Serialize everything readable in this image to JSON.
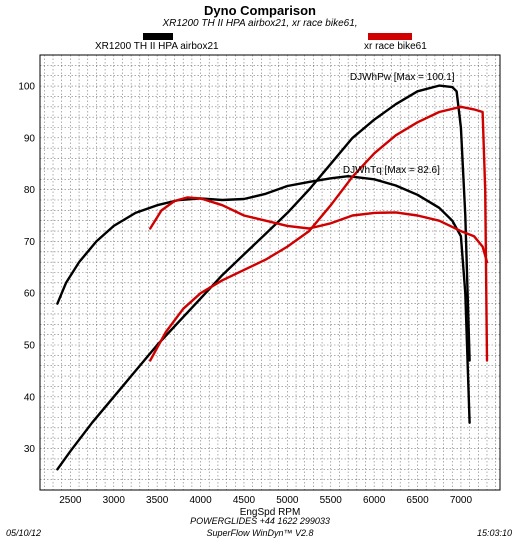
{
  "chart_data": {
    "type": "line",
    "title": "Dyno Comparison",
    "subtitle": "XR1200 TH II HPA airbox21, xr race bike61,",
    "xlabel": "EngSpd  RPM",
    "ylabel": "",
    "xlim": [
      2150,
      7450
    ],
    "ylim": [
      22,
      106
    ],
    "x_ticks": [
      2500,
      3000,
      3500,
      4000,
      4500,
      5000,
      5500,
      6000,
      6500,
      7000
    ],
    "y_ticks": [
      30,
      40,
      50,
      60,
      70,
      80,
      90,
      100
    ],
    "grid": true,
    "legend": [
      {
        "name": "XR1200 TH II HPA airbox21",
        "color": "#000000"
      },
      {
        "name": "xr race bike61",
        "color": "#d00000"
      }
    ],
    "annotations": [
      {
        "text": "DJWhPw [Max = 100.1]",
        "x": 5720,
        "y": 101.2
      },
      {
        "text": "DJWhTq [Max = 82.6]",
        "x": 5640,
        "y": 83.2
      }
    ],
    "series": [
      {
        "name": "XR1200 TH II HPA airbox21 power",
        "color": "#000000",
        "points": [
          [
            2350,
            26
          ],
          [
            2500,
            29.5
          ],
          [
            2750,
            35
          ],
          [
            3000,
            40
          ],
          [
            3250,
            45
          ],
          [
            3500,
            50
          ],
          [
            3750,
            54.5
          ],
          [
            4000,
            59
          ],
          [
            4250,
            63.5
          ],
          [
            4500,
            67.5
          ],
          [
            4750,
            71.5
          ],
          [
            5000,
            75.5
          ],
          [
            5250,
            80
          ],
          [
            5500,
            85
          ],
          [
            5750,
            90
          ],
          [
            6000,
            93.5
          ],
          [
            6250,
            96.5
          ],
          [
            6500,
            99
          ],
          [
            6750,
            100.1
          ],
          [
            6900,
            99.8
          ],
          [
            6950,
            99
          ],
          [
            7000,
            92
          ],
          [
            7050,
            75
          ],
          [
            7100,
            47
          ]
        ]
      },
      {
        "name": "XR1200 TH II HPA airbox21 torque",
        "color": "#000000",
        "points": [
          [
            2350,
            58
          ],
          [
            2450,
            62
          ],
          [
            2600,
            66
          ],
          [
            2800,
            70
          ],
          [
            3000,
            73
          ],
          [
            3250,
            75.5
          ],
          [
            3500,
            77
          ],
          [
            3750,
            78
          ],
          [
            4000,
            78.3
          ],
          [
            4250,
            78
          ],
          [
            4500,
            78.2
          ],
          [
            4750,
            79.2
          ],
          [
            5000,
            80.7
          ],
          [
            5250,
            81.5
          ],
          [
            5500,
            82.2
          ],
          [
            5700,
            82.6
          ],
          [
            6000,
            82
          ],
          [
            6250,
            80.8
          ],
          [
            6500,
            79
          ],
          [
            6750,
            76.5
          ],
          [
            6900,
            74
          ],
          [
            7000,
            71
          ],
          [
            7050,
            60
          ],
          [
            7100,
            35
          ]
        ]
      },
      {
        "name": "xr race bike61 power",
        "color": "#d00000",
        "points": [
          [
            3420,
            47
          ],
          [
            3600,
            52.5
          ],
          [
            3800,
            57
          ],
          [
            4000,
            60
          ],
          [
            4250,
            62.5
          ],
          [
            4500,
            64.5
          ],
          [
            4750,
            66.5
          ],
          [
            5000,
            69
          ],
          [
            5250,
            72
          ],
          [
            5500,
            77
          ],
          [
            5750,
            82.5
          ],
          [
            6000,
            87
          ],
          [
            6250,
            90.5
          ],
          [
            6500,
            93
          ],
          [
            6750,
            95
          ],
          [
            7000,
            96
          ],
          [
            7150,
            95.5
          ],
          [
            7250,
            95
          ],
          [
            7280,
            80
          ],
          [
            7300,
            47
          ]
        ]
      },
      {
        "name": "xr race bike61 torque",
        "color": "#d00000",
        "points": [
          [
            3420,
            72.5
          ],
          [
            3550,
            76
          ],
          [
            3700,
            77.8
          ],
          [
            3850,
            78.5
          ],
          [
            4000,
            78.3
          ],
          [
            4250,
            77
          ],
          [
            4500,
            75
          ],
          [
            4750,
            74
          ],
          [
            5000,
            73
          ],
          [
            5250,
            72.5
          ],
          [
            5500,
            73.5
          ],
          [
            5750,
            75
          ],
          [
            6000,
            75.5
          ],
          [
            6250,
            75.6
          ],
          [
            6500,
            75
          ],
          [
            6750,
            74
          ],
          [
            7000,
            72
          ],
          [
            7150,
            71
          ],
          [
            7250,
            69
          ],
          [
            7300,
            66
          ]
        ]
      }
    ]
  },
  "footer": {
    "date": "05/10/12",
    "line1": "POWERGLIDES +44 1622 299033",
    "line2": "SuperFlow WinDyn™  V2.8",
    "time": "15:03:10"
  }
}
